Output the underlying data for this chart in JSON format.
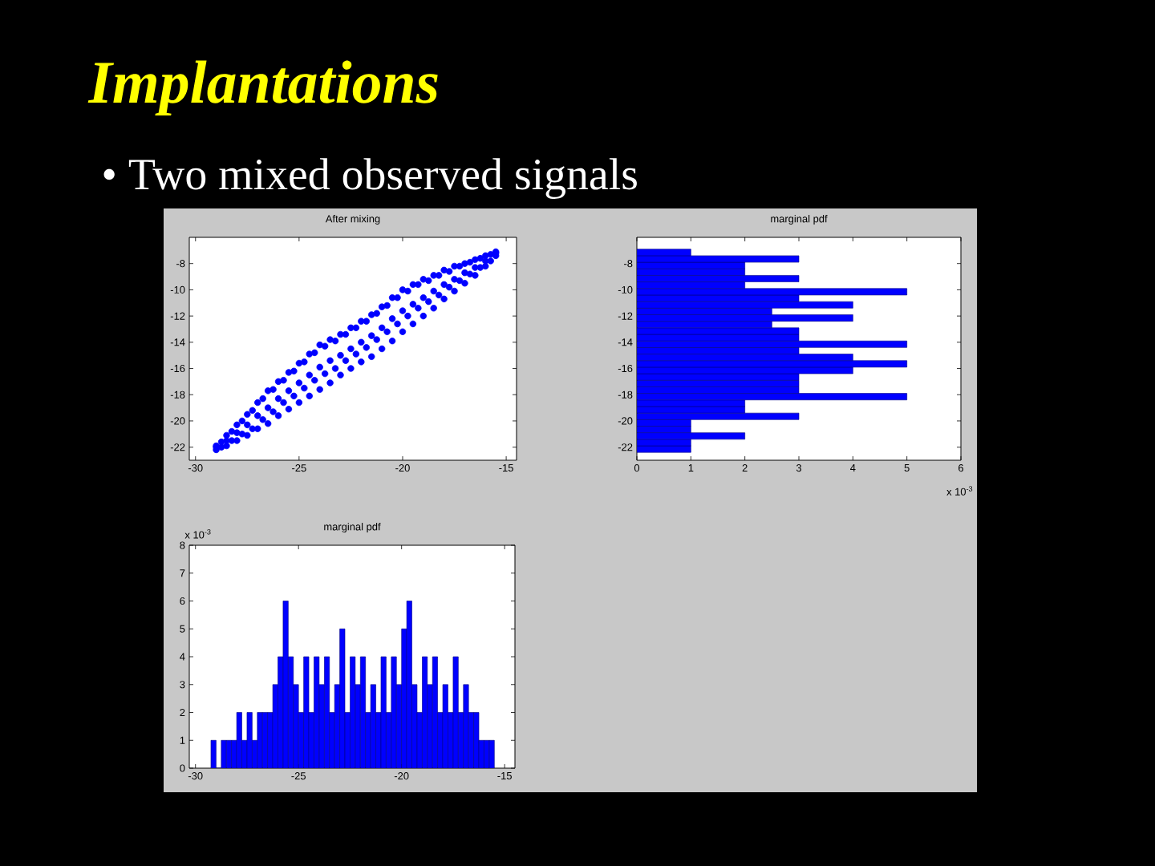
{
  "chart_data": [
    {
      "type": "other",
      "title": "Implantations",
      "subtitle": "• Two mixed observed signals"
    },
    {
      "type": "scatter",
      "title": "After mixing",
      "color": "#0000ff",
      "marker": "circle",
      "x": [
        -29,
        -29,
        -29,
        -28.75,
        -28.75,
        -28.5,
        -28.5,
        -28.5,
        -28.25,
        -28.25,
        -28,
        -28,
        -28,
        -27.75,
        -27.75,
        -27.5,
        -27.5,
        -27.5,
        -27.25,
        -27.25,
        -27,
        -27,
        -27,
        -26.75,
        -26.75,
        -26.5,
        -26.5,
        -26.5,
        -26.25,
        -26.25,
        -26,
        -26,
        -26,
        -25.75,
        -25.75,
        -25.5,
        -25.5,
        -25.5,
        -25.25,
        -25.25,
        -25,
        -25,
        -25,
        -24.75,
        -24.75,
        -24.5,
        -24.5,
        -24.5,
        -24.25,
        -24.25,
        -24,
        -24,
        -24,
        -23.75,
        -23.75,
        -23.5,
        -23.5,
        -23.5,
        -23.25,
        -23.25,
        -23,
        -23,
        -23,
        -22.75,
        -22.75,
        -22.5,
        -22.5,
        -22.5,
        -22.25,
        -22.25,
        -22,
        -22,
        -22,
        -21.75,
        -21.75,
        -21.5,
        -21.5,
        -21.5,
        -21.25,
        -21.25,
        -21,
        -21,
        -21,
        -20.75,
        -20.75,
        -20.5,
        -20.5,
        -20.5,
        -20.25,
        -20.25,
        -20,
        -20,
        -20,
        -19.75,
        -19.75,
        -19.5,
        -19.5,
        -19.5,
        -19.25,
        -19.25,
        -19,
        -19,
        -19,
        -18.75,
        -18.75,
        -18.5,
        -18.5,
        -18.5,
        -18.25,
        -18.25,
        -18,
        -18,
        -18,
        -17.75,
        -17.75,
        -17.5,
        -17.5,
        -17.5,
        -17.25,
        -17.25,
        -17,
        -17,
        -17,
        -16.75,
        -16.75,
        -16.5,
        -16.5,
        -16.5,
        -16.25,
        -16.25,
        -16,
        -16,
        -16,
        -15.75,
        -15.75,
        -15.5,
        -15.5,
        -15.5
      ],
      "values": [
        -21.9,
        -22.0,
        -22.2,
        -21.6,
        -22.0,
        -21.1,
        -21.5,
        -21.9,
        -20.8,
        -21.5,
        -20.3,
        -20.9,
        -21.5,
        -20.0,
        -21.0,
        -19.5,
        -20.3,
        -21.1,
        -19.2,
        -20.6,
        -18.6,
        -19.6,
        -20.6,
        -18.3,
        -19.9,
        -17.7,
        -19.0,
        -20.2,
        -17.6,
        -19.3,
        -17.0,
        -18.3,
        -19.6,
        -16.9,
        -18.6,
        -16.3,
        -17.7,
        -19.1,
        -16.2,
        -18.1,
        -15.6,
        -17.1,
        -18.6,
        -15.5,
        -17.5,
        -14.9,
        -16.5,
        -18.1,
        -14.8,
        -16.9,
        -14.2,
        -15.9,
        -17.6,
        -14.3,
        -16.4,
        -13.8,
        -15.4,
        -17.1,
        -13.9,
        -16.0,
        -13.4,
        -15.0,
        -16.5,
        -13.4,
        -15.4,
        -12.9,
        -14.5,
        -16.0,
        -12.9,
        -14.9,
        -12.4,
        -14.0,
        -15.5,
        -12.4,
        -14.4,
        -11.9,
        -13.5,
        -15.1,
        -11.8,
        -13.8,
        -11.3,
        -12.9,
        -14.5,
        -11.2,
        -13.2,
        -10.6,
        -12.2,
        -13.9,
        -10.6,
        -12.6,
        -10.0,
        -11.6,
        -13.2,
        -10.1,
        -12.0,
        -9.6,
        -11.1,
        -12.6,
        -9.6,
        -11.4,
        -9.2,
        -10.6,
        -12.0,
        -9.3,
        -10.9,
        -8.9,
        -10.1,
        -11.4,
        -8.9,
        -10.4,
        -8.5,
        -9.6,
        -10.7,
        -8.6,
        -9.8,
        -8.2,
        -9.2,
        -10.1,
        -8.2,
        -9.3,
        -8.0,
        -8.7,
        -9.5,
        -7.9,
        -8.8,
        -7.7,
        -8.3,
        -8.9,
        -7.6,
        -8.3,
        -7.4,
        -7.8,
        -8.2,
        -7.3,
        -7.8,
        -7.1,
        -7.2,
        -7.4
      ],
      "xlim": [
        -30.3,
        -14.5
      ],
      "ylim": [
        -23,
        -6
      ],
      "xticks": [
        -30,
        -25,
        -20,
        -15
      ],
      "yticks": [
        -22,
        -20,
        -18,
        -16,
        -14,
        -12,
        -10,
        -8
      ]
    },
    {
      "type": "histogram",
      "orientation": "horizontal",
      "title": "marginal pdf",
      "color": "#0000ff",
      "bins": [
        -22.4,
        -21.9,
        -21.4,
        -20.9,
        -20.4,
        -19.9,
        -19.4,
        -18.9,
        -18.4,
        -17.9,
        -17.4,
        -16.9,
        -16.4,
        -15.9,
        -15.4,
        -14.9,
        -14.4,
        -13.9,
        -13.4,
        -12.9,
        -12.4,
        -11.9,
        -11.4,
        -10.9,
        -10.4,
        -9.9,
        -9.4,
        -8.9,
        -8.4,
        -7.9,
        -7.4,
        -6.9
      ],
      "values": [
        1,
        1,
        2,
        1,
        1,
        3,
        2,
        2,
        5,
        3,
        3,
        3,
        4,
        5,
        4,
        3,
        5,
        3,
        3,
        2.5,
        4,
        2.5,
        4,
        3,
        5,
        2,
        3,
        2,
        2,
        3,
        1
      ],
      "xlim": [
        0,
        6
      ],
      "ylim": [
        -23,
        -6
      ],
      "xticks": [
        0,
        1,
        2,
        3,
        4,
        5,
        6
      ],
      "yticks": [
        -22,
        -20,
        -18,
        -16,
        -14,
        -12,
        -10,
        -8
      ],
      "annotations": [
        "x 10$^{-3}$"
      ]
    },
    {
      "type": "histogram",
      "title": "marginal pdf",
      "color": "#0000ff",
      "bins": [
        -29.25,
        -29,
        -28.75,
        -28.5,
        -28.25,
        -28,
        -27.75,
        -27.5,
        -27.25,
        -27,
        -26.75,
        -26.5,
        -26.25,
        -26,
        -25.75,
        -25.5,
        -25.25,
        -25,
        -24.75,
        -24.5,
        -24.25,
        -24,
        -23.75,
        -23.5,
        -23.25,
        -23,
        -22.75,
        -22.5,
        -22.25,
        -22,
        -21.75,
        -21.5,
        -21.25,
        -21,
        -20.75,
        -20.5,
        -20.25,
        -20,
        -19.75,
        -19.5,
        -19.25,
        -19,
        -18.75,
        -18.5,
        -18.25,
        -18,
        -17.75,
        -17.5,
        -17.25,
        -17,
        -16.75,
        -16.5,
        -16.25,
        -16,
        -15.75,
        -15.5
      ],
      "values": [
        1,
        0,
        1,
        1,
        1,
        2,
        1,
        2,
        1,
        2,
        2,
        2,
        3,
        4,
        6,
        4,
        3,
        2,
        4,
        2,
        4,
        3,
        4,
        2,
        3,
        5,
        2,
        4,
        3,
        4,
        2,
        3,
        2,
        4,
        2,
        4,
        3,
        5,
        6,
        3,
        2,
        4,
        3,
        4,
        2,
        3,
        2,
        4,
        2,
        3,
        2,
        2,
        1,
        1,
        1
      ],
      "xlim": [
        -30.3,
        -14.5
      ],
      "ylim": [
        0,
        8
      ],
      "xticks": [
        -30,
        -25,
        -20,
        -15
      ],
      "yticks": [
        0,
        1,
        2,
        3,
        4,
        5,
        6,
        7,
        8
      ],
      "annotations": [
        "x 10$^{-3}$"
      ]
    }
  ]
}
